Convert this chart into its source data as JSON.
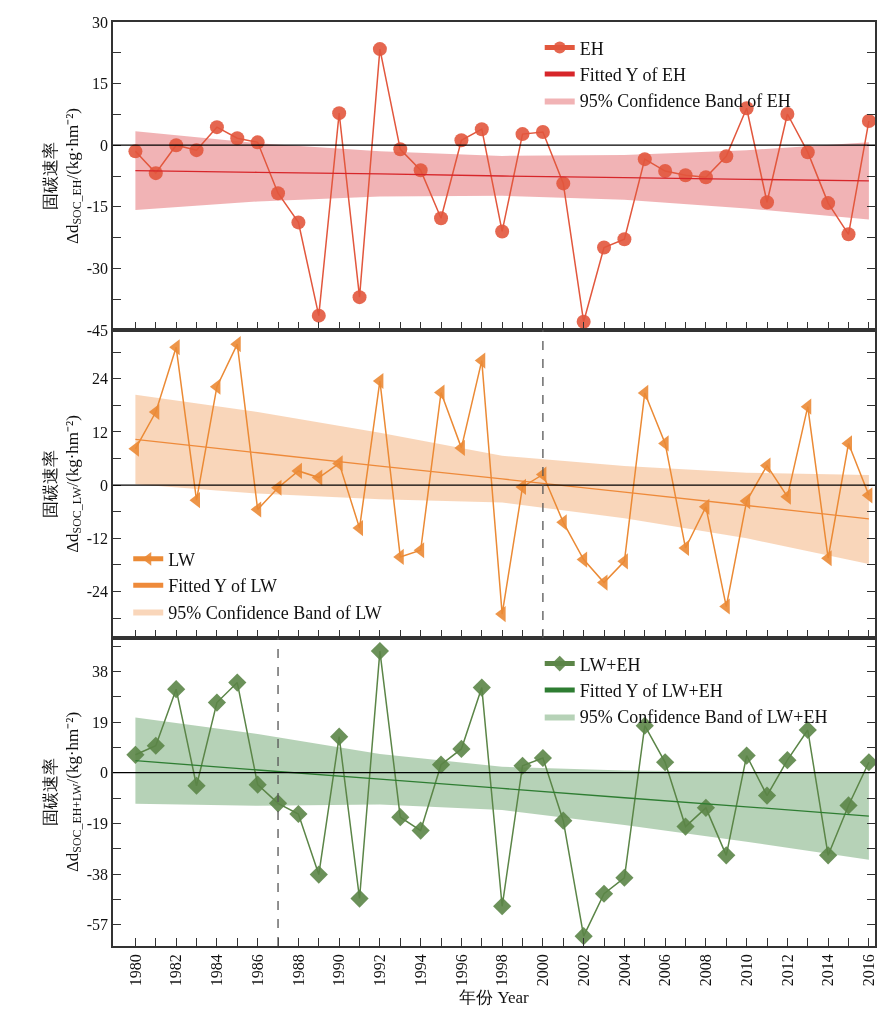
{
  "chart_data": [
    {
      "type": "line",
      "ylabel": "固碳速率\nΔd$_{SOC_EH}$/(kg·hm⁻²)",
      "annotations": [
        "95% Confidence Band of EH"
      ],
      "legend": "top right",
      "tick_labels": "y",
      "grid": false,
      "x": [
        1980,
        1981,
        1982,
        1983,
        1984,
        1985,
        1986,
        1987,
        1988,
        1989,
        1990,
        1991,
        1992,
        1993,
        1994,
        1995,
        1996,
        1997,
        1998,
        1999,
        2000,
        2001,
        2002,
        2003,
        2004,
        2005,
        2006,
        2007,
        2008,
        2009,
        2010,
        2011,
        2012,
        2013,
        2014,
        2015,
        2016
      ],
      "xlim": [
        1978.9,
        2016.3
      ],
      "xticks": [
        1980,
        {
          "value": 1981,
          "label": null
        },
        1982,
        {
          "value": 1983,
          "label": null
        },
        1984,
        {
          "value": 1985,
          "label": null
        },
        1986,
        {
          "value": 1987,
          "label": null
        },
        1988,
        {
          "value": 1989,
          "label": null
        },
        1990,
        {
          "value": 1991,
          "label": null
        },
        1992,
        {
          "value": 1993,
          "label": null
        },
        1994,
        {
          "value": 1995,
          "label": null
        },
        1996,
        {
          "value": 1997,
          "label": null
        },
        1998,
        {
          "value": 1999,
          "label": null
        },
        2000,
        {
          "value": 2001,
          "label": null
        },
        2002,
        {
          "value": 2003,
          "label": null
        },
        2004,
        {
          "value": 2005,
          "label": null
        },
        2006,
        {
          "value": 2007,
          "label": null
        },
        2008,
        {
          "value": 2009,
          "label": null
        },
        2010,
        {
          "value": 2011,
          "label": null
        },
        2012,
        {
          "value": 2013,
          "label": null
        },
        2014,
        {
          "value": 2015,
          "label": null
        },
        2016
      ],
      "ylim": [
        -45,
        30
      ],
      "yticks": [
        -45,
        {
          "value": -37.5,
          "label": null
        },
        -30,
        {
          "value": -22.5,
          "label": null
        },
        -15,
        {
          "value": -7.5,
          "label": null
        },
        0,
        {
          "value": 7.5,
          "label": null
        },
        15,
        {
          "value": 22.5,
          "label": null
        },
        30
      ],
      "ref_lines": [
        {
          "axis": "y",
          "value": 0,
          "color": "#000000",
          "line_style": "solid"
        }
      ],
      "series": [
        {
          "name": "EH",
          "marker": "circle",
          "color": "#e2573d",
          "values": [
            -1.5,
            -6.8,
            0,
            -1.2,
            4.4,
            1.7,
            0.7,
            -11.7,
            -18.8,
            -41.5,
            7.8,
            -37,
            23.4,
            -1,
            -6.1,
            -17.8,
            1.2,
            3.9,
            -21,
            2.7,
            3.2,
            -9.3,
            -43,
            -24.9,
            -22.9,
            -3.4,
            -6.3,
            -7.3,
            -7.8,
            -2.7,
            9,
            -13.9,
            7.6,
            -1.7,
            -14.1,
            -21.7,
            5.9
          ]
        },
        {
          "name": "Fitted Y of EH",
          "marker": "none",
          "color": "#d7262a",
          "x": [
            1980,
            1986,
            1992,
            1998,
            2004,
            2010,
            2016
          ],
          "values": [
            -6.2,
            -6.6,
            -7,
            -7.5,
            -7.9,
            -8.3,
            -8.7
          ],
          "lower": [
            -15.8,
            -13.7,
            -12.5,
            -12.3,
            -13.3,
            -15.4,
            -18.1
          ],
          "upper": [
            3.4,
            0.5,
            -1.5,
            -2.6,
            -2.4,
            -1.2,
            0.7
          ]
        }
      ]
    },
    {
      "type": "line",
      "ylabel": "固碳速率\nΔd$_{SOC_LW}$/(kg·hm⁻²)",
      "annotations": [
        "95% Confidence Band of LW"
      ],
      "legend": "bottom left",
      "tick_labels": "y",
      "grid": false,
      "x": [
        1980,
        1981,
        1982,
        1983,
        1984,
        1985,
        1986,
        1987,
        1988,
        1989,
        1990,
        1991,
        1992,
        1993,
        1994,
        1995,
        1996,
        1997,
        1998,
        1999,
        2000,
        2001,
        2002,
        2003,
        2004,
        2005,
        2006,
        2007,
        2008,
        2009,
        2010,
        2011,
        2012,
        2013,
        2014,
        2015,
        2016
      ],
      "xlim": [
        1978.9,
        2016.3
      ],
      "xticks": [
        1980,
        {
          "value": 1981,
          "label": null
        },
        1982,
        {
          "value": 1983,
          "label": null
        },
        1984,
        {
          "value": 1985,
          "label": null
        },
        1986,
        {
          "value": 1987,
          "label": null
        },
        1988,
        {
          "value": 1989,
          "label": null
        },
        1990,
        {
          "value": 1991,
          "label": null
        },
        1992,
        {
          "value": 1993,
          "label": null
        },
        1994,
        {
          "value": 1995,
          "label": null
        },
        1996,
        {
          "value": 1997,
          "label": null
        },
        1998,
        {
          "value": 1999,
          "label": null
        },
        2000,
        {
          "value": 2001,
          "label": null
        },
        2002,
        {
          "value": 2003,
          "label": null
        },
        2004,
        {
          "value": 2005,
          "label": null
        },
        2006,
        {
          "value": 2007,
          "label": null
        },
        2008,
        {
          "value": 2009,
          "label": null
        },
        2010,
        {
          "value": 2011,
          "label": null
        },
        2012,
        {
          "value": 2013,
          "label": null
        },
        2014,
        {
          "value": 2015,
          "label": null
        },
        2016
      ],
      "ylim": [
        -34.5,
        35
      ],
      "yticks": [
        {
          "value": -30,
          "label": null
        },
        -24,
        {
          "value": -18,
          "label": null
        },
        -12,
        {
          "value": -6,
          "label": null
        },
        0,
        {
          "value": 6,
          "label": null
        },
        12,
        {
          "value": 18,
          "label": null
        },
        24,
        {
          "value": 30,
          "label": null
        }
      ],
      "ref_lines": [
        {
          "axis": "y",
          "value": 0,
          "color": "#000000",
          "line_style": "solid"
        },
        {
          "axis": "x",
          "value": 2000,
          "color": "#555555",
          "line_style": "dashed"
        }
      ],
      "series": [
        {
          "name": "LW",
          "marker": "triangle",
          "color": "#eb8a35",
          "values": [
            8.2,
            16.5,
            31.1,
            -3.4,
            22.2,
            31.8,
            -5.5,
            -0.6,
            3.2,
            1.7,
            4.9,
            -9.7,
            23.5,
            -16.2,
            -14.7,
            20.9,
            8.4,
            28.1,
            -29.1,
            -0.4,
            2.4,
            -8.4,
            -16.8,
            -22,
            -17.2,
            20.8,
            9.4,
            -14.2,
            -4.9,
            -27.4,
            -3.6,
            4.4,
            -2.6,
            17.7,
            -16.5,
            9.4,
            -2.3
          ]
        },
        {
          "name": "Fitted Y of LW",
          "marker": "none",
          "color": "#ee8a3a",
          "x": [
            1980,
            1986,
            1992,
            1998,
            2004,
            2010,
            2016
          ],
          "values": [
            10.3,
            7.3,
            4.3,
            1.4,
            -1.6,
            -4.6,
            -7.6
          ],
          "lower": [
            0.2,
            -1.9,
            -3.2,
            -3.9,
            -7.5,
            -12,
            -17.8
          ],
          "upper": [
            20.4,
            16.5,
            11.8,
            6.6,
            4.3,
            2.8,
            2.3
          ]
        }
      ]
    },
    {
      "type": "line",
      "ylabel": "固碳速率\nΔd$_{SOC_EH+LW}$/(kg·hm⁻²)",
      "annotations": [
        "95% Confidence Band of LW+EH"
      ],
      "xlabel": "年份 Year",
      "legend": "top right",
      "grid": false,
      "x": [
        1980,
        1981,
        1982,
        1983,
        1984,
        1985,
        1986,
        1987,
        1988,
        1989,
        1990,
        1991,
        1992,
        1993,
        1994,
        1995,
        1996,
        1997,
        1998,
        1999,
        2000,
        2001,
        2002,
        2003,
        2004,
        2005,
        2006,
        2007,
        2008,
        2009,
        2010,
        2011,
        2012,
        2013,
        2014,
        2015,
        2016
      ],
      "xlim": [
        1978.9,
        2016.3
      ],
      "xticks": [
        1980,
        {
          "value": 1981,
          "label": null
        },
        1982,
        {
          "value": 1983,
          "label": null
        },
        1984,
        {
          "value": 1985,
          "label": null
        },
        1986,
        {
          "value": 1987,
          "label": null
        },
        1988,
        {
          "value": 1989,
          "label": null
        },
        1990,
        {
          "value": 1991,
          "label": null
        },
        1992,
        {
          "value": 1993,
          "label": null
        },
        1994,
        {
          "value": 1995,
          "label": null
        },
        1996,
        {
          "value": 1997,
          "label": null
        },
        1998,
        {
          "value": 1999,
          "label": null
        },
        2000,
        {
          "value": 2001,
          "label": null
        },
        2002,
        {
          "value": 2003,
          "label": null
        },
        2004,
        {
          "value": 2005,
          "label": null
        },
        2006,
        {
          "value": 2007,
          "label": null
        },
        2008,
        {
          "value": 2009,
          "label": null
        },
        2010,
        {
          "value": 2011,
          "label": null
        },
        2012,
        {
          "value": 2013,
          "label": null
        },
        2014,
        {
          "value": 2015,
          "label": null
        },
        2016
      ],
      "ylim": [
        -65,
        50.5
      ],
      "yticks": [
        -57,
        {
          "value": -47.5,
          "label": null
        },
        -38,
        {
          "value": -28.5,
          "label": null
        },
        -19,
        {
          "value": -9.5,
          "label": null
        },
        0,
        {
          "value": 9.5,
          "label": null
        },
        19,
        {
          "value": 28.5,
          "label": null
        },
        38,
        {
          "value": 47.5,
          "label": null
        }
      ],
      "ref_lines": [
        {
          "axis": "y",
          "value": 0,
          "color": "#000000",
          "line_style": "solid"
        },
        {
          "axis": "x",
          "value": 1987,
          "color": "#555555",
          "line_style": "dashed"
        }
      ],
      "series": [
        {
          "name": "LW+EH",
          "marker": "diamond",
          "color": "#5b8547",
          "values": [
            6.7,
            10.1,
            31.3,
            -4.9,
            26.3,
            33.8,
            -4.5,
            -11.5,
            -15.5,
            -38.2,
            13.5,
            -47.2,
            45.6,
            -16.7,
            -21.7,
            3,
            8.9,
            31.9,
            -50.1,
            2.6,
            5.5,
            -18,
            -61.3,
            -45.4,
            -39.4,
            17.6,
            3.9,
            -20.2,
            -13.2,
            -31,
            6.4,
            -8.6,
            4.7,
            16,
            -31,
            -12.3,
            3.9
          ]
        },
        {
          "name": "Fitted Y of LW+EH",
          "marker": "none",
          "color": "#2e7d32",
          "x": [
            1980,
            1986,
            1992,
            1998,
            2004,
            2010,
            2016
          ],
          "values": [
            4.5,
            1,
            -2.4,
            -5.9,
            -9.4,
            -12.8,
            -16.3
          ],
          "lower": [
            -11.7,
            -12.4,
            -11.9,
            -14,
            -19.6,
            -25.9,
            -32.7
          ],
          "upper": [
            20.7,
            14.5,
            7,
            2.2,
            0.8,
            0.3,
            0.1
          ]
        }
      ]
    }
  ]
}
